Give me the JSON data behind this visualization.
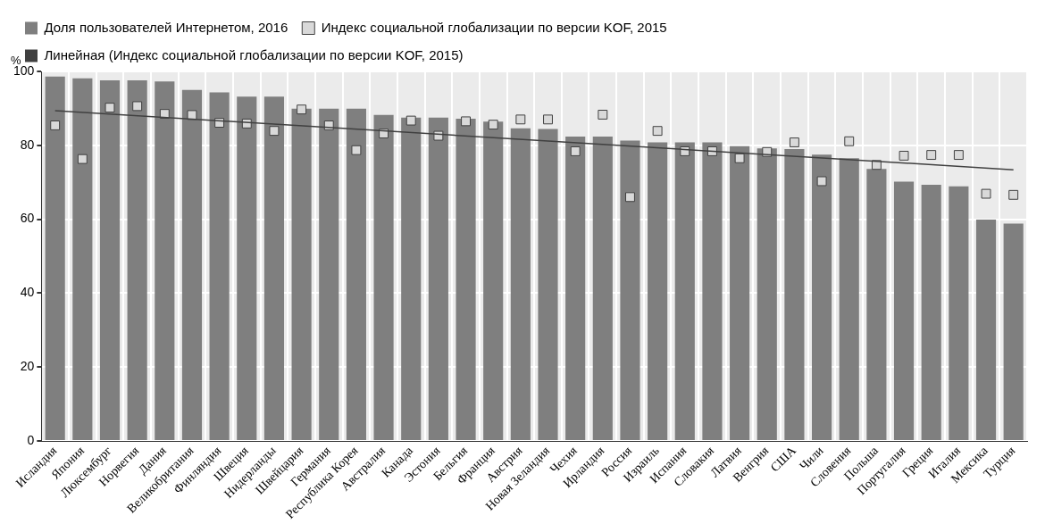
{
  "chart_data": {
    "type": "bar",
    "ylabel": "%",
    "categories": [
      "Исландия",
      "Япония",
      "Люксембург",
      "Норвегия",
      "Дания",
      "Великобритания",
      "Финляндия",
      "Швеция",
      "Нидерланды",
      "Швейцария",
      "Германия",
      "Республика Корея",
      "Австралия",
      "Канада",
      "Эстония",
      "Бельгия",
      "Франция",
      "Австрия",
      "Новая Зеландия",
      "Чехия",
      "Ирландия",
      "Россия",
      "Израиль",
      "Испания",
      "Словакия",
      "Латвия",
      "Венгрия",
      "США",
      "Чили",
      "Словения",
      "Польша",
      "Португалия",
      "Греция",
      "Италия",
      "Мексика",
      "Турция"
    ],
    "series": [
      {
        "name": "Доля пользователей Интернетом, 2016",
        "color": "#7f7f7f",
        "values": [
          98.6,
          98.1,
          97.6,
          97.6,
          97.3,
          95.0,
          94.3,
          93.2,
          93.2,
          89.9,
          89.9,
          89.9,
          88.2,
          87.5,
          87.5,
          87.2,
          86.4,
          84.6,
          84.4,
          82.4,
          82.4,
          81.3,
          80.8,
          80.8,
          80.8,
          79.8,
          79.2,
          79.0,
          77.5,
          76.5,
          73.6,
          70.2,
          69.3,
          68.9,
          59.9,
          58.8
        ]
      },
      {
        "name": "Индекс социальной глобализации по версии KOF, 2015",
        "type": "scatter",
        "color": "#d9d9d9",
        "marker": "square",
        "values": [
          85.4,
          76.3,
          90.2,
          90.6,
          88.5,
          88.2,
          86.1,
          85.9,
          83.9,
          89.7,
          85.4,
          78.7,
          83.2,
          86.7,
          82.6,
          86.5,
          85.6,
          87.0,
          87.0,
          78.4,
          88.3,
          66.0,
          83.9,
          78.4,
          78.4,
          76.5,
          78.2,
          80.8,
          70.3,
          81.1,
          74.7,
          77.2,
          77.4,
          77.4,
          66.9,
          66.6
        ]
      },
      {
        "name": "Линейная (Индекс социальной глобализации по версии KOF, 2015)",
        "type": "line",
        "color": "#404040",
        "x": [
          "Исландия",
          "Турция"
        ],
        "values": [
          89.4,
          73.4
        ]
      }
    ],
    "ylim": [
      0,
      100
    ],
    "yticks": [
      0,
      20,
      40,
      60,
      80,
      100
    ],
    "grid": true,
    "legend": "top"
  }
}
